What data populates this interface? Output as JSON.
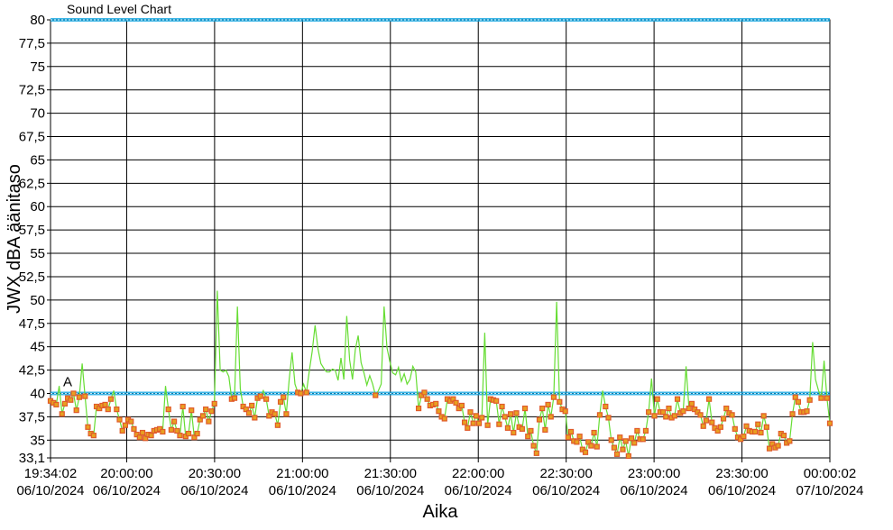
{
  "chart_data": {
    "type": "line",
    "title": "Sound Level Chart",
    "ylabel": "JWX dBA äänitaso",
    "xlabel": "Aika",
    "ylim": [
      33.1,
      80
    ],
    "y_ticks": [
      "80",
      "77,5",
      "75",
      "72,5",
      "70",
      "67,5",
      "65",
      "62,5",
      "60",
      "57,5",
      "55",
      "52,5",
      "50",
      "47,5",
      "45",
      "42,5",
      "40",
      "37,5",
      "35",
      "33,1"
    ],
    "y_tick_values": [
      80,
      77.5,
      75,
      72.5,
      70,
      67.5,
      65,
      62.5,
      60,
      57.5,
      55,
      52.5,
      50,
      47.5,
      45,
      42.5,
      40,
      37.5,
      35,
      33.1
    ],
    "x_range_minutes": [
      0,
      266
    ],
    "x_ticks": [
      {
        "minute": 0,
        "time": "19:34:02",
        "date": "06/10/2024"
      },
      {
        "minute": 26,
        "time": "20:00:00",
        "date": "06/10/2024"
      },
      {
        "minute": 56,
        "time": "20:30:00",
        "date": "06/10/2024"
      },
      {
        "minute": 86,
        "time": "21:00:00",
        "date": "06/10/2024"
      },
      {
        "minute": 116,
        "time": "21:30:00",
        "date": "06/10/2024"
      },
      {
        "minute": 146,
        "time": "22:00:00",
        "date": "06/10/2024"
      },
      {
        "minute": 176,
        "time": "22:30:00",
        "date": "06/10/2024"
      },
      {
        "minute": 206,
        "time": "23:00:00",
        "date": "06/10/2024"
      },
      {
        "minute": 236,
        "time": "23:30:00",
        "date": "06/10/2024"
      },
      {
        "minute": 266,
        "time": "00:00:02",
        "date": "07/10/2024"
      }
    ],
    "limit_lines": [
      {
        "label": "A",
        "value": 40,
        "color": "#00a0e0"
      },
      {
        "label": "",
        "value": 80,
        "color": "#00a0e0"
      }
    ],
    "series": [
      {
        "color": "#66dd33",
        "marker_color": "#e05a2a",
        "marker_fill": "#e8a020",
        "values": [
          39.2,
          39.0,
          38.8,
          40.8,
          37.8,
          38.9,
          39.5,
          39.3,
          40.0,
          38.2,
          39.6,
          43.2,
          39.7,
          36.4,
          35.7,
          35.5,
          38.6,
          38.4,
          38.7,
          38.8,
          38.3,
          39.4,
          40.3,
          38.3,
          37.2,
          36.0,
          36.6,
          37.2,
          37.0,
          36.2,
          35.6,
          35.3,
          35.8,
          35.2,
          35.6,
          35.5,
          36.0,
          36.1,
          36.2,
          35.9,
          40.8,
          38.3,
          36.1,
          37.0,
          36.0,
          35.5,
          38.6,
          35.4,
          35.7,
          38.2,
          35.3,
          35.7,
          37.2,
          37.6,
          38.3,
          37.0,
          38.1,
          38.9,
          51.0,
          42.5,
          42.3,
          42.5,
          41.8,
          39.4,
          39.5,
          49.3,
          40.5,
          38.6,
          38.3,
          37.9,
          38.7,
          37.4,
          39.5,
          39.7,
          40.3,
          39.4,
          37.6,
          38.0,
          37.8,
          36.6,
          39.1,
          39.6,
          37.8,
          41.5,
          44.4,
          41.0,
          40.1,
          40.0,
          41.0,
          40.1,
          42.4,
          44.5,
          47.3,
          44.8,
          43.2,
          42.7,
          42.3,
          42.3,
          42.6,
          42.5,
          41.4,
          43.8,
          41.5,
          48.3,
          43.6,
          41.5,
          44.7,
          46.2,
          43.3,
          42.2,
          40.9,
          41.9,
          41.0,
          39.8,
          40.3,
          41.0,
          49.3,
          44.9,
          43.4,
          42.2,
          42.0,
          42.8,
          41.3,
          42.1,
          41.0,
          41.5,
          42.9,
          42.3,
          38.4,
          39.8,
          40.1,
          39.4,
          38.7,
          38.8,
          38.9,
          38.1,
          37.5,
          37.3,
          39.4,
          39.2,
          39.4,
          39.0,
          38.4,
          38.7,
          36.9,
          36.3,
          38.0,
          36.8,
          37.6,
          36.8,
          37.4,
          46.5,
          36.6,
          39.4,
          39.3,
          39.2,
          36.7,
          38.6,
          37.5,
          36.3,
          37.8,
          35.8,
          37.9,
          36.4,
          36.2,
          38.4,
          35.4,
          36.0,
          34.4,
          33.6,
          37.2,
          38.4,
          36.1,
          38.8,
          37.5,
          39.6,
          49.8,
          39.1,
          38.3,
          38.1,
          35.3,
          35.9,
          34.9,
          34.8,
          35.4,
          34.0,
          33.7,
          34.8,
          34.4,
          35.8,
          34.3,
          37.7,
          40.3,
          38.6,
          37.4,
          35.0,
          34.2,
          33.5,
          35.3,
          34.0,
          34.9,
          33.3,
          35.2,
          34.7,
          36.0,
          35.1,
          35.1,
          36.0,
          38.0,
          41.6,
          37.6,
          39.4,
          38.0,
          38.0,
          37.5,
          38.4,
          37.4,
          37.6,
          39.4,
          37.9,
          38.1,
          42.9,
          38.4,
          38.9,
          38.3,
          38.0,
          37.7,
          36.5,
          37.1,
          39.4,
          36.9,
          36.3,
          36.0,
          36.4,
          37.3,
          38.4,
          37.9,
          37.7,
          36.2,
          35.3,
          35.1,
          35.4,
          36.5,
          36.0,
          35.9,
          35.9,
          36.7,
          35.8,
          37.6,
          36.4,
          34.1,
          34.6,
          34.2,
          34.4,
          35.7,
          35.5,
          34.7,
          34.9,
          37.8,
          39.6,
          39.1,
          38.0,
          38.0,
          38.1,
          39.3,
          45.5,
          41.5,
          40.4,
          39.5,
          43.5,
          39.5,
          36.8
        ]
      }
    ],
    "grid": true,
    "legend": "none"
  }
}
